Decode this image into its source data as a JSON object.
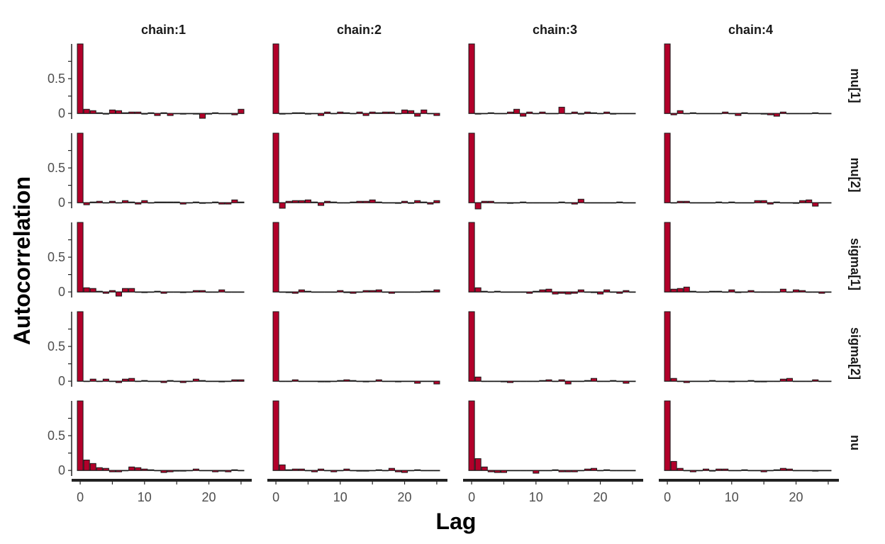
{
  "chart_data": {
    "type": "bar",
    "xlabel": "Lag",
    "ylabel": "Autocorrelation",
    "xlim": [
      -1,
      26
    ],
    "ylim": [
      -0.08,
      1.0
    ],
    "x_ticks": [
      "0",
      "10",
      "20"
    ],
    "y_ticks": [
      "0",
      "0.5"
    ],
    "colors": {
      "bar_fill": "#b2002a",
      "bar_stroke": "#1a1a1a",
      "axis": "#222222"
    },
    "columns": [
      "chain:1",
      "chain:2",
      "chain:3",
      "chain:4"
    ],
    "rows": [
      "mu[1]",
      "mu[2]",
      "sigma[1]",
      "sigma[2]",
      "nu"
    ],
    "lags": [
      0,
      1,
      2,
      3,
      4,
      5,
      6,
      7,
      8,
      9,
      10,
      11,
      12,
      13,
      14,
      15,
      16,
      17,
      18,
      19,
      20,
      21,
      22,
      23,
      24,
      25
    ],
    "panels": [
      [
        [
          1.0,
          0.06,
          0.04,
          0.01,
          -0.01,
          0.05,
          0.04,
          0.01,
          0.02,
          0.02,
          -0.01,
          0.01,
          -0.03,
          0.01,
          -0.03,
          0.0,
          -0.01,
          0.0,
          -0.01,
          -0.07,
          -0.01,
          0.01,
          0.0,
          0.0,
          -0.02,
          0.06
        ],
        [
          1.0,
          -0.03,
          0.01,
          0.02,
          0.0,
          0.02,
          0.0,
          0.03,
          0.01,
          -0.02,
          0.03,
          0.0,
          0.01,
          0.01,
          0.01,
          0.01,
          -0.02,
          0.0,
          0.01,
          -0.01,
          0.0,
          0.01,
          -0.02,
          -0.02,
          0.04,
          0.01
        ],
        [
          1.0,
          0.06,
          0.05,
          0.01,
          -0.02,
          0.02,
          -0.06,
          0.05,
          0.05,
          0.0,
          -0.01,
          0.0,
          0.01,
          -0.02,
          0.0,
          0.0,
          -0.01,
          0.0,
          0.02,
          0.02,
          0.0,
          0.0,
          0.03,
          0.0,
          0.0,
          0.0
        ],
        [
          1.0,
          0.0,
          0.03,
          0.0,
          0.03,
          0.0,
          -0.02,
          0.03,
          0.04,
          0.0,
          0.01,
          0.0,
          0.0,
          -0.02,
          0.01,
          0.0,
          -0.02,
          0.0,
          0.03,
          0.01,
          0.0,
          0.0,
          -0.01,
          0.0,
          0.02,
          0.02
        ],
        [
          1.0,
          0.15,
          0.1,
          0.04,
          0.03,
          -0.02,
          -0.02,
          0.0,
          0.05,
          0.04,
          0.02,
          0.01,
          0.0,
          -0.03,
          -0.02,
          -0.01,
          -0.01,
          0.0,
          0.02,
          0.0,
          0.0,
          -0.02,
          -0.01,
          -0.02,
          0.01,
          0.0
        ]
      ],
      [
        [
          1.0,
          -0.01,
          0.0,
          0.01,
          0.01,
          -0.01,
          0.0,
          -0.03,
          0.02,
          0.0,
          0.02,
          0.01,
          0.0,
          0.02,
          -0.03,
          0.02,
          0.01,
          0.02,
          0.02,
          0.0,
          0.05,
          0.04,
          -0.04,
          0.05,
          0.0,
          -0.03
        ],
        [
          1.0,
          -0.08,
          0.02,
          0.03,
          0.03,
          0.04,
          0.01,
          -0.04,
          0.02,
          0.01,
          0.0,
          0.0,
          0.01,
          0.02,
          0.02,
          0.04,
          0.01,
          0.0,
          0.0,
          -0.01,
          0.02,
          -0.01,
          0.03,
          0.01,
          -0.02,
          0.03
        ],
        [
          1.0,
          0.0,
          -0.01,
          -0.02,
          0.03,
          0.01,
          0.0,
          0.0,
          0.0,
          0.0,
          0.02,
          -0.01,
          -0.02,
          0.0,
          0.02,
          0.02,
          0.03,
          0.0,
          -0.02,
          0.0,
          0.0,
          0.0,
          0.0,
          0.01,
          0.01,
          0.03
        ],
        [
          1.0,
          0.0,
          0.0,
          0.02,
          0.0,
          0.0,
          0.0,
          -0.01,
          -0.01,
          0.0,
          0.01,
          0.02,
          0.01,
          0.0,
          -0.01,
          0.0,
          0.02,
          0.0,
          0.0,
          -0.01,
          0.0,
          0.0,
          -0.03,
          0.0,
          0.0,
          -0.04
        ],
        [
          1.0,
          0.08,
          0.01,
          0.02,
          0.02,
          0.0,
          -0.02,
          0.02,
          0.0,
          -0.02,
          0.0,
          0.02,
          0.0,
          -0.01,
          -0.01,
          0.0,
          0.01,
          0.0,
          0.03,
          -0.02,
          -0.03,
          0.0,
          0.01,
          0.0,
          0.0,
          0.0
        ]
      ],
      [
        [
          1.0,
          -0.01,
          0.0,
          0.01,
          0.0,
          0.0,
          0.02,
          0.06,
          -0.04,
          0.02,
          0.0,
          0.02,
          0.0,
          0.0,
          0.09,
          0.0,
          0.02,
          -0.01,
          0.02,
          0.01,
          0.0,
          0.02,
          -0.01,
          0.0,
          0.0,
          0.0
        ],
        [
          1.0,
          -0.09,
          0.02,
          0.02,
          0.0,
          0.0,
          -0.01,
          0.0,
          0.01,
          0.0,
          0.0,
          0.0,
          0.0,
          0.0,
          0.01,
          0.0,
          -0.02,
          0.05,
          0.0,
          0.0,
          0.0,
          0.0,
          0.0,
          0.01,
          0.0,
          0.0
        ],
        [
          1.0,
          0.06,
          0.01,
          0.0,
          0.01,
          0.0,
          0.0,
          0.0,
          0.0,
          -0.02,
          0.01,
          0.03,
          0.04,
          -0.03,
          -0.02,
          -0.03,
          -0.02,
          0.03,
          0.0,
          -0.01,
          -0.03,
          0.03,
          0.0,
          -0.02,
          0.02,
          0.0
        ],
        [
          1.0,
          0.06,
          0.0,
          0.0,
          0.0,
          -0.01,
          -0.02,
          0.0,
          0.0,
          0.0,
          0.0,
          0.01,
          0.02,
          0.0,
          0.02,
          -0.04,
          0.0,
          0.0,
          0.01,
          0.04,
          0.0,
          0.0,
          0.01,
          0.0,
          -0.03,
          0.0
        ],
        [
          1.0,
          0.17,
          0.05,
          -0.02,
          -0.03,
          -0.03,
          0.0,
          0.0,
          0.0,
          0.0,
          -0.04,
          0.0,
          0.0,
          0.01,
          -0.02,
          -0.02,
          -0.02,
          0.0,
          0.02,
          0.03,
          0.0,
          0.01,
          0.0,
          0.0,
          0.0,
          0.0
        ]
      ],
      [
        [
          1.0,
          -0.02,
          0.04,
          0.0,
          0.01,
          0.0,
          0.0,
          0.0,
          0.0,
          0.02,
          0.0,
          -0.03,
          0.01,
          0.0,
          0.0,
          -0.01,
          -0.02,
          -0.04,
          0.02,
          0.0,
          0.0,
          0.0,
          0.0,
          0.01,
          0.0,
          0.0
        ],
        [
          1.0,
          0.0,
          0.02,
          0.02,
          0.0,
          0.0,
          0.0,
          0.0,
          0.01,
          0.0,
          0.01,
          0.0,
          0.0,
          0.0,
          0.03,
          0.03,
          -0.02,
          0.01,
          0.0,
          0.0,
          -0.01,
          0.03,
          0.04,
          -0.05,
          0.0,
          0.0
        ],
        [
          1.0,
          0.04,
          0.05,
          0.07,
          0.01,
          0.0,
          0.0,
          0.01,
          0.01,
          0.0,
          0.03,
          -0.01,
          0.0,
          0.02,
          0.0,
          0.0,
          0.0,
          0.0,
          0.04,
          0.0,
          0.03,
          0.02,
          0.0,
          0.0,
          -0.02,
          0.0
        ],
        [
          1.0,
          0.04,
          0.0,
          -0.02,
          0.0,
          0.0,
          0.0,
          0.01,
          0.0,
          0.0,
          -0.01,
          0.0,
          0.0,
          0.01,
          -0.01,
          -0.01,
          0.0,
          0.0,
          0.03,
          0.04,
          0.0,
          0.0,
          0.0,
          0.02,
          0.0,
          0.0
        ],
        [
          1.0,
          0.13,
          0.03,
          0.0,
          -0.02,
          0.0,
          0.02,
          -0.01,
          0.02,
          0.02,
          0.0,
          0.0,
          0.01,
          0.0,
          0.0,
          -0.02,
          0.0,
          0.01,
          0.03,
          0.02,
          0.0,
          0.0,
          0.0,
          -0.01,
          0.0,
          0.0
        ]
      ]
    ]
  }
}
